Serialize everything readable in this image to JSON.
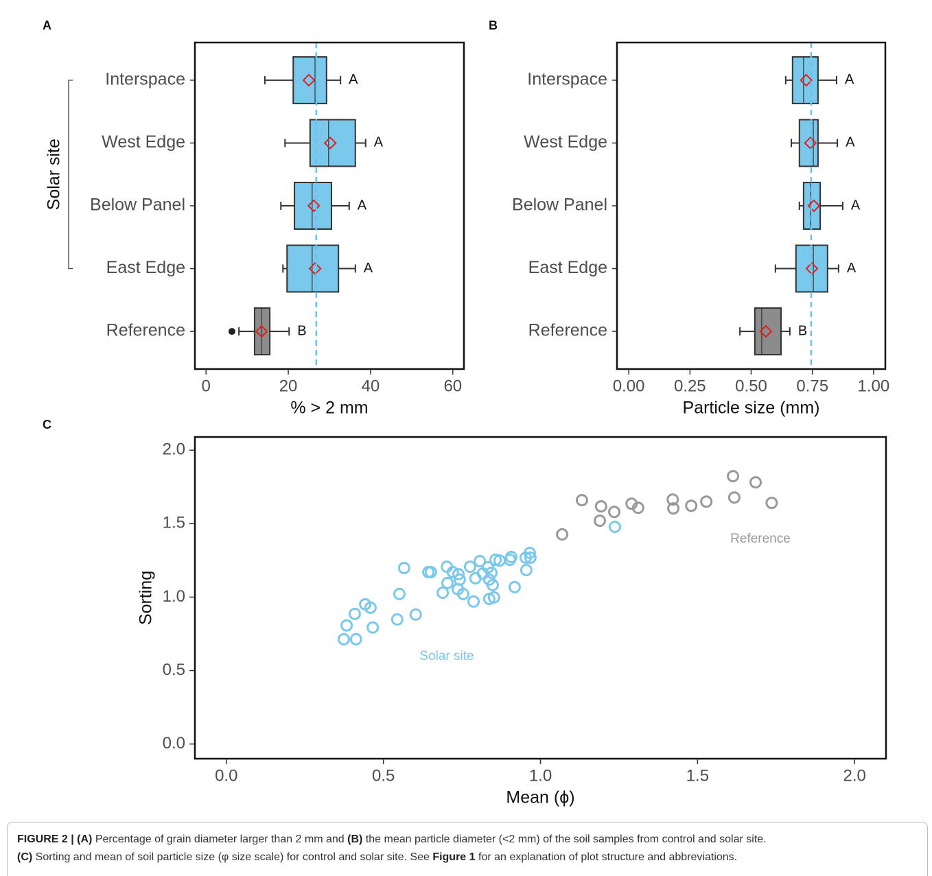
{
  "chart_data": [
    {
      "type": "boxplot",
      "panel_label": "A",
      "xlabel": "% > 2 mm",
      "ylabel": "Solar site",
      "categories": [
        "Interspace",
        "West Edge",
        "Below Panel",
        "East Edge",
        "Reference"
      ],
      "boxes": [
        {
          "whisker_low": 14.3,
          "q1": 21.2,
          "median": 26.5,
          "q3": 29.3,
          "whisker_high": 32.7,
          "mean": 25.0,
          "outliers": [],
          "letter": "A",
          "color": "#7ac8ec"
        },
        {
          "whisker_low": 19.2,
          "q1": 25.3,
          "median": 29.8,
          "q3": 36.3,
          "whisker_high": 38.8,
          "mean": 30.2,
          "outliers": [],
          "letter": "A",
          "color": "#7ac8ec"
        },
        {
          "whisker_low": 18.2,
          "q1": 21.5,
          "median": 25.8,
          "q3": 30.5,
          "whisker_high": 34.8,
          "mean": 26.2,
          "outliers": [],
          "letter": "A",
          "color": "#7ac8ec"
        },
        {
          "whisker_low": 18.7,
          "q1": 19.7,
          "median": 25.8,
          "q3": 32.2,
          "whisker_high": 36.3,
          "mean": 26.5,
          "outliers": [],
          "letter": "A",
          "color": "#7ac8ec"
        },
        {
          "whisker_low": 8.0,
          "q1": 11.8,
          "median": 13.5,
          "q3": 15.5,
          "whisker_high": 20.2,
          "mean": 13.5,
          "outliers": [
            6.3
          ],
          "letter": "B",
          "color": "#8c8c8c"
        }
      ],
      "mean_color": "#e0201c",
      "reference_line": 26.8,
      "reference_line_color": "#6cc0ea",
      "xlim": [
        -2.7,
        62.7
      ],
      "xticks": [
        0,
        20,
        40,
        60
      ]
    },
    {
      "type": "boxplot",
      "panel_label": "B",
      "xlabel": "Particle size (mm)",
      "categories": [
        "Interspace",
        "West Edge",
        "Below Panel",
        "East Edge",
        "Reference"
      ],
      "boxes": [
        {
          "whisker_low": 0.641,
          "q1": 0.669,
          "median": 0.714,
          "q3": 0.773,
          "whisker_high": 0.849,
          "mean": 0.725,
          "outliers": [],
          "letter": "A",
          "color": "#7ac8ec"
        },
        {
          "whisker_low": 0.664,
          "q1": 0.697,
          "median": 0.754,
          "q3": 0.773,
          "whisker_high": 0.852,
          "mean": 0.742,
          "outliers": [],
          "letter": "A",
          "color": "#7ac8ec"
        },
        {
          "whisker_low": 0.697,
          "q1": 0.714,
          "median": 0.742,
          "q3": 0.782,
          "whisker_high": 0.874,
          "mean": 0.756,
          "outliers": [],
          "letter": "A",
          "color": "#7ac8ec"
        },
        {
          "whisker_low": 0.599,
          "q1": 0.683,
          "median": 0.754,
          "q3": 0.812,
          "whisker_high": 0.857,
          "mean": 0.748,
          "outliers": [],
          "letter": "A",
          "color": "#7ac8ec"
        },
        {
          "whisker_low": 0.454,
          "q1": 0.515,
          "median": 0.543,
          "q3": 0.622,
          "whisker_high": 0.658,
          "mean": 0.56,
          "outliers": [],
          "letter": "B",
          "color": "#8c8c8c"
        }
      ],
      "mean_color": "#e0201c",
      "reference_line": 0.745,
      "reference_line_color": "#6cc0ea",
      "xlim": [
        -0.048,
        1.048
      ],
      "xticks": [
        {
          "value": 0,
          "label": "0.00"
        },
        {
          "value": 0.25,
          "label": "0.25"
        },
        {
          "value": 0.5,
          "label": "0.50"
        },
        {
          "value": 0.75,
          "label": "0.75"
        },
        {
          "value": 1,
          "label": "1.00"
        }
      ]
    },
    {
      "type": "scatter",
      "panel_label": "C",
      "xlabel": "Mean (ϕ)",
      "ylabel": "Sorting",
      "series": [
        {
          "name": "Solar site",
          "color": "#7ac8ec",
          "x": [
            0.374,
            0.413,
            0.383,
            0.466,
            0.409,
            0.442,
            0.459,
            0.544,
            0.603,
            0.551,
            0.566,
            0.643,
            0.651,
            0.689,
            0.704,
            0.702,
            0.721,
            0.739,
            0.743,
            0.737,
            0.754,
            0.787,
            0.776,
            0.793,
            0.807,
            0.817,
            0.833,
            0.837,
            0.837,
            0.844,
            0.848,
            0.852,
            0.857,
            0.87,
            0.903,
            0.907,
            0.953,
            0.966,
            0.968,
            0.955,
            0.918,
            1.237
          ],
          "values": [
            0.713,
            0.713,
            0.807,
            0.793,
            0.886,
            0.951,
            0.928,
            0.848,
            0.881,
            1.021,
            1.198,
            1.17,
            1.17,
            1.03,
            1.096,
            1.207,
            1.17,
            1.156,
            1.119,
            1.054,
            1.021,
            0.97,
            1.207,
            1.128,
            1.245,
            1.161,
            1.203,
            1.119,
            0.988,
            1.166,
            1.082,
            0.998,
            1.254,
            1.249,
            1.254,
            1.273,
            1.268,
            1.301,
            1.268,
            1.184,
            1.068,
            1.478
          ]
        },
        {
          "name": "Reference",
          "color": "#999999",
          "x": [
            1.069,
            1.132,
            1.193,
            1.189,
            1.235,
            1.29,
            1.311,
            1.421,
            1.423,
            1.48,
            1.528,
            1.613,
            1.617,
            1.685,
            1.736
          ],
          "values": [
            1.427,
            1.66,
            1.618,
            1.52,
            1.58,
            1.636,
            1.608,
            1.664,
            1.604,
            1.622,
            1.65,
            1.823,
            1.678,
            1.781,
            1.641
          ]
        }
      ],
      "xlim": [
        -0.1,
        2.1
      ],
      "xticks": [
        {
          "value": 0,
          "label": "0.0"
        },
        {
          "value": 0.5,
          "label": "0.5"
        },
        {
          "value": 1,
          "label": "1.0"
        },
        {
          "value": 1.5,
          "label": "1.5"
        },
        {
          "value": 2,
          "label": "2.0"
        }
      ],
      "ylim": [
        -0.1,
        2.09
      ],
      "yticks": [
        {
          "value": 0,
          "label": "0.0"
        },
        {
          "value": 0.5,
          "label": "0.5"
        },
        {
          "value": 1,
          "label": "1.0"
        },
        {
          "value": 1.5,
          "label": "1.5"
        },
        {
          "value": 2,
          "label": "2.0"
        }
      ]
    }
  ],
  "caption": [
    "FIGURE 2 | (A)",
    " Percentage of grain diameter larger than 2 mm and ",
    "(B)",
    " the mean particle diameter (<2 mm) of the soil samples from control and solar site.",
    "(C)",
    " Sorting and mean of soil particle size (φ size scale) for control and solar site. See ",
    "Figure 1",
    " for an explanation of plot structure and abbreviations."
  ]
}
